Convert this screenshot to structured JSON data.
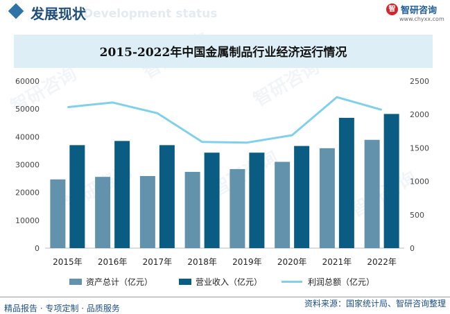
{
  "header": {
    "title": "发展现状",
    "subtitle": "Development status",
    "logo_text": "智研咨询",
    "logo_url": "www.chyxx.com"
  },
  "watermark": "智研咨询",
  "chart_data": {
    "type": "bar+line",
    "title": "2015-2022年中国金属制品行业经济运行情况",
    "categories": [
      "2015年",
      "2016年",
      "2017年",
      "2018年",
      "2019年",
      "2020年",
      "2021年",
      "2022年"
    ],
    "series": [
      {
        "name": "资产总计（亿元）",
        "type": "bar",
        "axis": "left",
        "color": "#6393ac",
        "values": [
          24700,
          25600,
          25900,
          27400,
          28400,
          31000,
          35900,
          38900
        ]
      },
      {
        "name": "营业收入（亿元）",
        "type": "bar",
        "axis": "left",
        "color": "#0b5c82",
        "values": [
          37000,
          38500,
          37000,
          34300,
          34300,
          36700,
          46800,
          48200
        ]
      },
      {
        "name": "利润总额（亿元）",
        "type": "line",
        "axis": "right",
        "color": "#7fd0ec",
        "values": [
          2110,
          2180,
          2020,
          1590,
          1580,
          1690,
          2260,
          2070
        ]
      }
    ],
    "y_left": {
      "min": 0,
      "max": 60000,
      "ticks": [
        "0",
        "10000",
        "20000",
        "30000",
        "40000",
        "50000",
        "60000"
      ]
    },
    "y_right": {
      "min": 0,
      "max": 2500,
      "ticks": [
        "0",
        "500",
        "1000",
        "1500",
        "2000",
        "2500"
      ]
    },
    "grid": false,
    "legend_position": "bottom"
  },
  "footer": {
    "left": "精品报告 · 专项定制 · 品质服务",
    "right": "资料来源：国家统计局、智研咨询整理"
  }
}
